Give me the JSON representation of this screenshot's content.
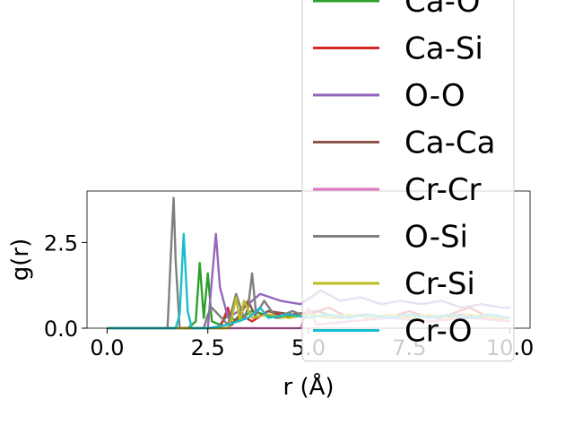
{
  "chart_data": {
    "type": "line",
    "xlabel": "r (Å)",
    "ylabel": "g(r)",
    "xlim": [
      -0.5,
      10.5
    ],
    "ylim": [
      0,
      4.0
    ],
    "x_ticks": [
      "0.0",
      "2.5",
      "5.0",
      "7.5",
      "10.0"
    ],
    "y_ticks": [
      "0.0",
      "2.5"
    ],
    "grid": false,
    "legend_position": "upper-right",
    "series": [
      {
        "name": "Ca-O",
        "color": "#2ca02c",
        "x": [
          0,
          1,
          2,
          2.2,
          2.3,
          2.4,
          2.5,
          2.6,
          2.8,
          3.0,
          3.2,
          3.6,
          4.2,
          5.0,
          5.6,
          6.4,
          7.0,
          7.6,
          8.2,
          8.8,
          9.4,
          10.0
        ],
        "y": [
          0,
          0,
          0,
          0.2,
          1.9,
          0.3,
          1.6,
          0.2,
          0.1,
          0.4,
          0.2,
          0.5,
          0.3,
          0.4,
          0.3,
          0.4,
          0.3,
          0.4,
          0.3,
          0.4,
          0.3,
          0.2
        ]
      },
      {
        "name": "Ca-Si",
        "color": "#d62728",
        "x": [
          0,
          1,
          2,
          2.8,
          3.0,
          3.1,
          3.3,
          3.6,
          4.0,
          4.5,
          5.0,
          5.5,
          6.0,
          6.5,
          7.0,
          7.5,
          8.0,
          8.5,
          9.0,
          9.5,
          10.0
        ],
        "y": [
          0,
          0,
          0,
          0,
          0.6,
          0.1,
          0.4,
          0.2,
          0.5,
          0.3,
          0.4,
          0.6,
          0.3,
          0.4,
          0.3,
          0.5,
          0.3,
          0.4,
          0.6,
          0.3,
          0.3
        ]
      },
      {
        "name": "O-O",
        "color": "#9467bd",
        "x": [
          0,
          1,
          2,
          2.5,
          2.6,
          2.7,
          2.8,
          3.0,
          3.4,
          3.8,
          4.3,
          4.8,
          5.3,
          5.8,
          6.3,
          6.8,
          7.3,
          7.8,
          8.3,
          8.8,
          9.3,
          9.8,
          10.0
        ],
        "y": [
          0,
          0,
          0,
          0,
          1.4,
          2.75,
          1.2,
          0.3,
          0.6,
          1.0,
          0.8,
          0.7,
          1.1,
          0.8,
          0.9,
          0.7,
          0.8,
          0.7,
          0.8,
          0.6,
          0.7,
          0.6,
          0.6
        ]
      },
      {
        "name": "Ca-Ca",
        "color": "#8c564b",
        "x": [
          0,
          1,
          2,
          3.0,
          3.3,
          3.5,
          3.7,
          4.0,
          4.6,
          5.2,
          5.8,
          6.4,
          7.0,
          7.6,
          8.2,
          8.8,
          9.4,
          10.0
        ],
        "y": [
          0,
          0,
          0,
          0,
          0.4,
          0.8,
          0.3,
          0.5,
          0.4,
          0.5,
          0.3,
          0.4,
          0.3,
          0.4,
          0.3,
          0.4,
          0.3,
          0.3
        ]
      },
      {
        "name": "Cr-Cr",
        "color": "#e377c2",
        "x": [
          0,
          1,
          2,
          3.0,
          4.0,
          4.8,
          5.0,
          5.2,
          6.0,
          7.0,
          8.0,
          9.0,
          10.0
        ],
        "y": [
          0,
          0,
          0,
          0,
          0,
          0,
          0.6,
          0.1,
          0.2,
          0.3,
          0.2,
          0.3,
          0.2
        ]
      },
      {
        "name": "O-Si",
        "color": "#7f7f7f",
        "x": [
          0,
          1,
          1.5,
          1.6,
          1.65,
          1.7,
          1.8,
          2.4,
          2.5,
          2.6,
          3.0,
          3.2,
          3.4,
          3.5,
          3.6,
          3.7,
          3.9,
          4.2,
          4.6,
          5.0,
          5.5,
          6.0,
          6.5,
          7.0,
          7.5,
          8.0,
          8.5,
          9.0,
          9.5,
          10.0
        ],
        "y": [
          0,
          0,
          0,
          2.6,
          3.8,
          2.0,
          0,
          0,
          0.4,
          0.6,
          0.1,
          1.0,
          0.3,
          0.6,
          1.6,
          0.4,
          0.8,
          0.3,
          0.5,
          0.3,
          0.4,
          0.3,
          0.4,
          0.3,
          0.4,
          0.3,
          0.4,
          0.3,
          0.4,
          0.3
        ]
      },
      {
        "name": "Cr-Si",
        "color": "#bcbd22",
        "x": [
          0,
          1,
          2,
          3.0,
          3.1,
          3.2,
          3.3,
          3.4,
          3.6,
          4.0,
          4.5,
          5.0,
          5.5,
          6.0,
          6.5,
          7.0,
          7.5,
          8.0,
          8.5,
          9.0,
          9.5,
          10.0
        ],
        "y": [
          0,
          0,
          0,
          0,
          0.3,
          0.9,
          0.2,
          0.8,
          0.3,
          0.4,
          0.3,
          0.4,
          0.3,
          0.4,
          0.3,
          0.4,
          0.3,
          0.4,
          0.3,
          0.4,
          0.3,
          0.3
        ]
      },
      {
        "name": "Cr-O",
        "color": "#17becf",
        "x": [
          0,
          1,
          1.7,
          1.8,
          1.9,
          2.0,
          2.1,
          2.5,
          3.0,
          3.5,
          3.8,
          4.0,
          4.5,
          5.0,
          5.5,
          6.0,
          6.5,
          7.0,
          7.5,
          8.0,
          8.5,
          9.0,
          9.5,
          10.0
        ],
        "y": [
          0,
          0,
          0,
          0.4,
          2.75,
          0.5,
          0,
          0,
          0.1,
          0.3,
          0.6,
          0.3,
          0.4,
          0.3,
          0.4,
          0.3,
          0.4,
          0.3,
          0.4,
          0.3,
          0.4,
          0.3,
          0.4,
          0.3
        ]
      }
    ]
  }
}
